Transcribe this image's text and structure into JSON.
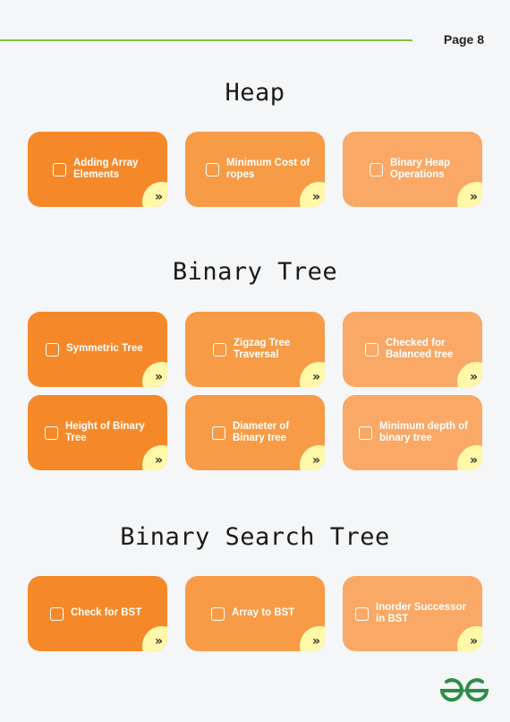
{
  "header": {
    "page_label": "Page 8"
  },
  "sections": [
    {
      "title": "Heap",
      "cards": [
        {
          "label": "Adding Array Elements"
        },
        {
          "label": "Minimum Cost of ropes"
        },
        {
          "label": "Binary Heap Operations"
        }
      ]
    },
    {
      "title": "Binary Tree",
      "cards": [
        {
          "label": "Symmetric Tree"
        },
        {
          "label": "Zigzag Tree Traversal"
        },
        {
          "label": "Checked for Balanced tree"
        },
        {
          "label": "Height of Binary Tree"
        },
        {
          "label": "Diameter of Binary tree"
        },
        {
          "label": "Minimum depth of binary tree"
        }
      ]
    },
    {
      "title": "Binary Search Tree",
      "cards": [
        {
          "label": "Check for BST"
        },
        {
          "label": "Array to BST"
        },
        {
          "label": "Inorder Successor in BST"
        }
      ]
    }
  ],
  "icons": {
    "checkbox": "checkbox-icon",
    "arrow": "double-chevron-right-icon",
    "logo": "gfg-logo"
  },
  "colors": {
    "card_dark": "#f5892a",
    "card_mid": "#f79b46",
    "card_light": "#f9a866",
    "accent_green": "#2f8d46",
    "line_green": "#7ac142",
    "corner_yellow": "#fff8a8"
  }
}
